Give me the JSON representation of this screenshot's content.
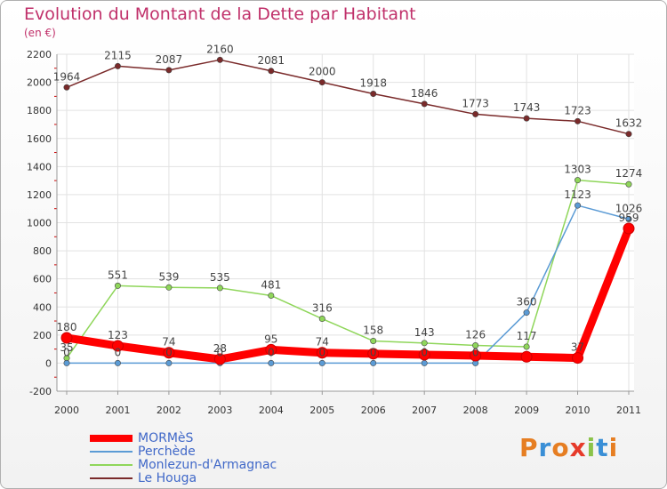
{
  "header": {
    "title": "Evolution du Montant de la Dette par Habitant",
    "subtitle": "(en €)"
  },
  "logo": {
    "text": "Proxiti",
    "colors": [
      "#e67e22",
      "#3a8fd6",
      "#e67e22",
      "#e63a2a",
      "#8bc34a",
      "#3a8fd6",
      "#e67e22"
    ]
  },
  "chart_data": {
    "type": "line",
    "title": "Evolution du Montant de la Dette par Habitant",
    "ylabel": "(en €)",
    "xlabel": "",
    "x": [
      "2000",
      "2001",
      "2002",
      "2003",
      "2004",
      "2005",
      "2006",
      "2007",
      "2008",
      "2009",
      "2010",
      "2011"
    ],
    "ylim": [
      -200,
      2200
    ],
    "yticks": [
      "-200",
      "0",
      "200",
      "400",
      "600",
      "800",
      "1000",
      "1200",
      "1400",
      "1600",
      "1800",
      "2000",
      "2200"
    ],
    "grid": true,
    "legend_position": "bottom-left",
    "series": [
      {
        "name": "MORMèS",
        "color": "#ff0000",
        "values": [
          180,
          123,
          74,
          28,
          95,
          74,
          67,
          60,
          53,
          45,
          37,
          959
        ],
        "labels": [
          "180",
          "123",
          "74",
          "28",
          "95",
          "74",
          "",
          "",
          "",
          "",
          "37",
          "959"
        ]
      },
      {
        "name": "Perchède",
        "color": "#5b9bd5",
        "values": [
          0,
          0,
          0,
          0,
          0,
          0,
          0,
          0,
          0,
          360,
          1123,
          1026
        ],
        "labels": [
          "0",
          "0",
          "0",
          "0",
          "0",
          "0",
          "0",
          "0",
          "0",
          "360",
          "1123",
          "1026"
        ]
      },
      {
        "name": "Monlezun-d'Armagnac",
        "color": "#8fd65a",
        "values": [
          35,
          551,
          539,
          535,
          481,
          316,
          158,
          143,
          126,
          117,
          1303,
          1274
        ],
        "labels": [
          "35",
          "551",
          "539",
          "535",
          "481",
          "316",
          "158",
          "143",
          "126",
          "117",
          "1303",
          "1274"
        ]
      },
      {
        "name": "Le Houga",
        "color": "#7a2a2a",
        "values": [
          1964,
          2115,
          2087,
          2160,
          2081,
          2000,
          1918,
          1846,
          1773,
          1743,
          1723,
          1632
        ],
        "labels": [
          "1964",
          "2115",
          "2087",
          "2160",
          "2081",
          "2000",
          "1918",
          "1846",
          "1773",
          "1743",
          "1723",
          "1632"
        ]
      }
    ]
  }
}
